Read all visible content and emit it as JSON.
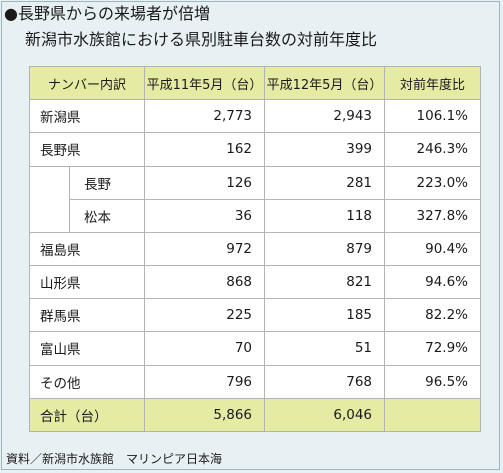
{
  "headline": "●長野県からの来場者が倍増",
  "subtitle": "新潟市水族館における県別駐車台数の対前年度比",
  "table": {
    "headers": [
      "ナンバー内訳",
      "平成11年5月（台）",
      "平成12年5月（台）",
      "対前年度比"
    ],
    "rows": [
      {
        "name": "新潟県",
        "h11": "2,773",
        "h12": "2,943",
        "ratio": "106.1%"
      },
      {
        "name": "長野県",
        "h11": "162",
        "h12": "399",
        "ratio": "246.3%"
      },
      {
        "name": "長野",
        "h11": "126",
        "h12": "281",
        "ratio": "223.0%"
      },
      {
        "name": "松本",
        "h11": "36",
        "h12": "118",
        "ratio": "327.8%"
      },
      {
        "name": "福島県",
        "h11": "972",
        "h12": "879",
        "ratio": "90.4%"
      },
      {
        "name": "山形県",
        "h11": "868",
        "h12": "821",
        "ratio": "94.6%"
      },
      {
        "name": "群馬県",
        "h11": "225",
        "h12": "185",
        "ratio": "82.2%"
      },
      {
        "name": "富山県",
        "h11": "70",
        "h12": "51",
        "ratio": "72.9%"
      },
      {
        "name": "その他",
        "h11": "796",
        "h12": "768",
        "ratio": "96.5%"
      }
    ],
    "total": {
      "name": "合計（台）",
      "h11": "5,866",
      "h12": "6,046",
      "ratio": ""
    }
  },
  "source": "資料／新潟市水族館　マリンピア日本海",
  "colors": {
    "background": "#e7f1f4",
    "header_fill": "#e6eba4",
    "cell_fill": "#ffffff",
    "grid": "#b3b3b3"
  }
}
